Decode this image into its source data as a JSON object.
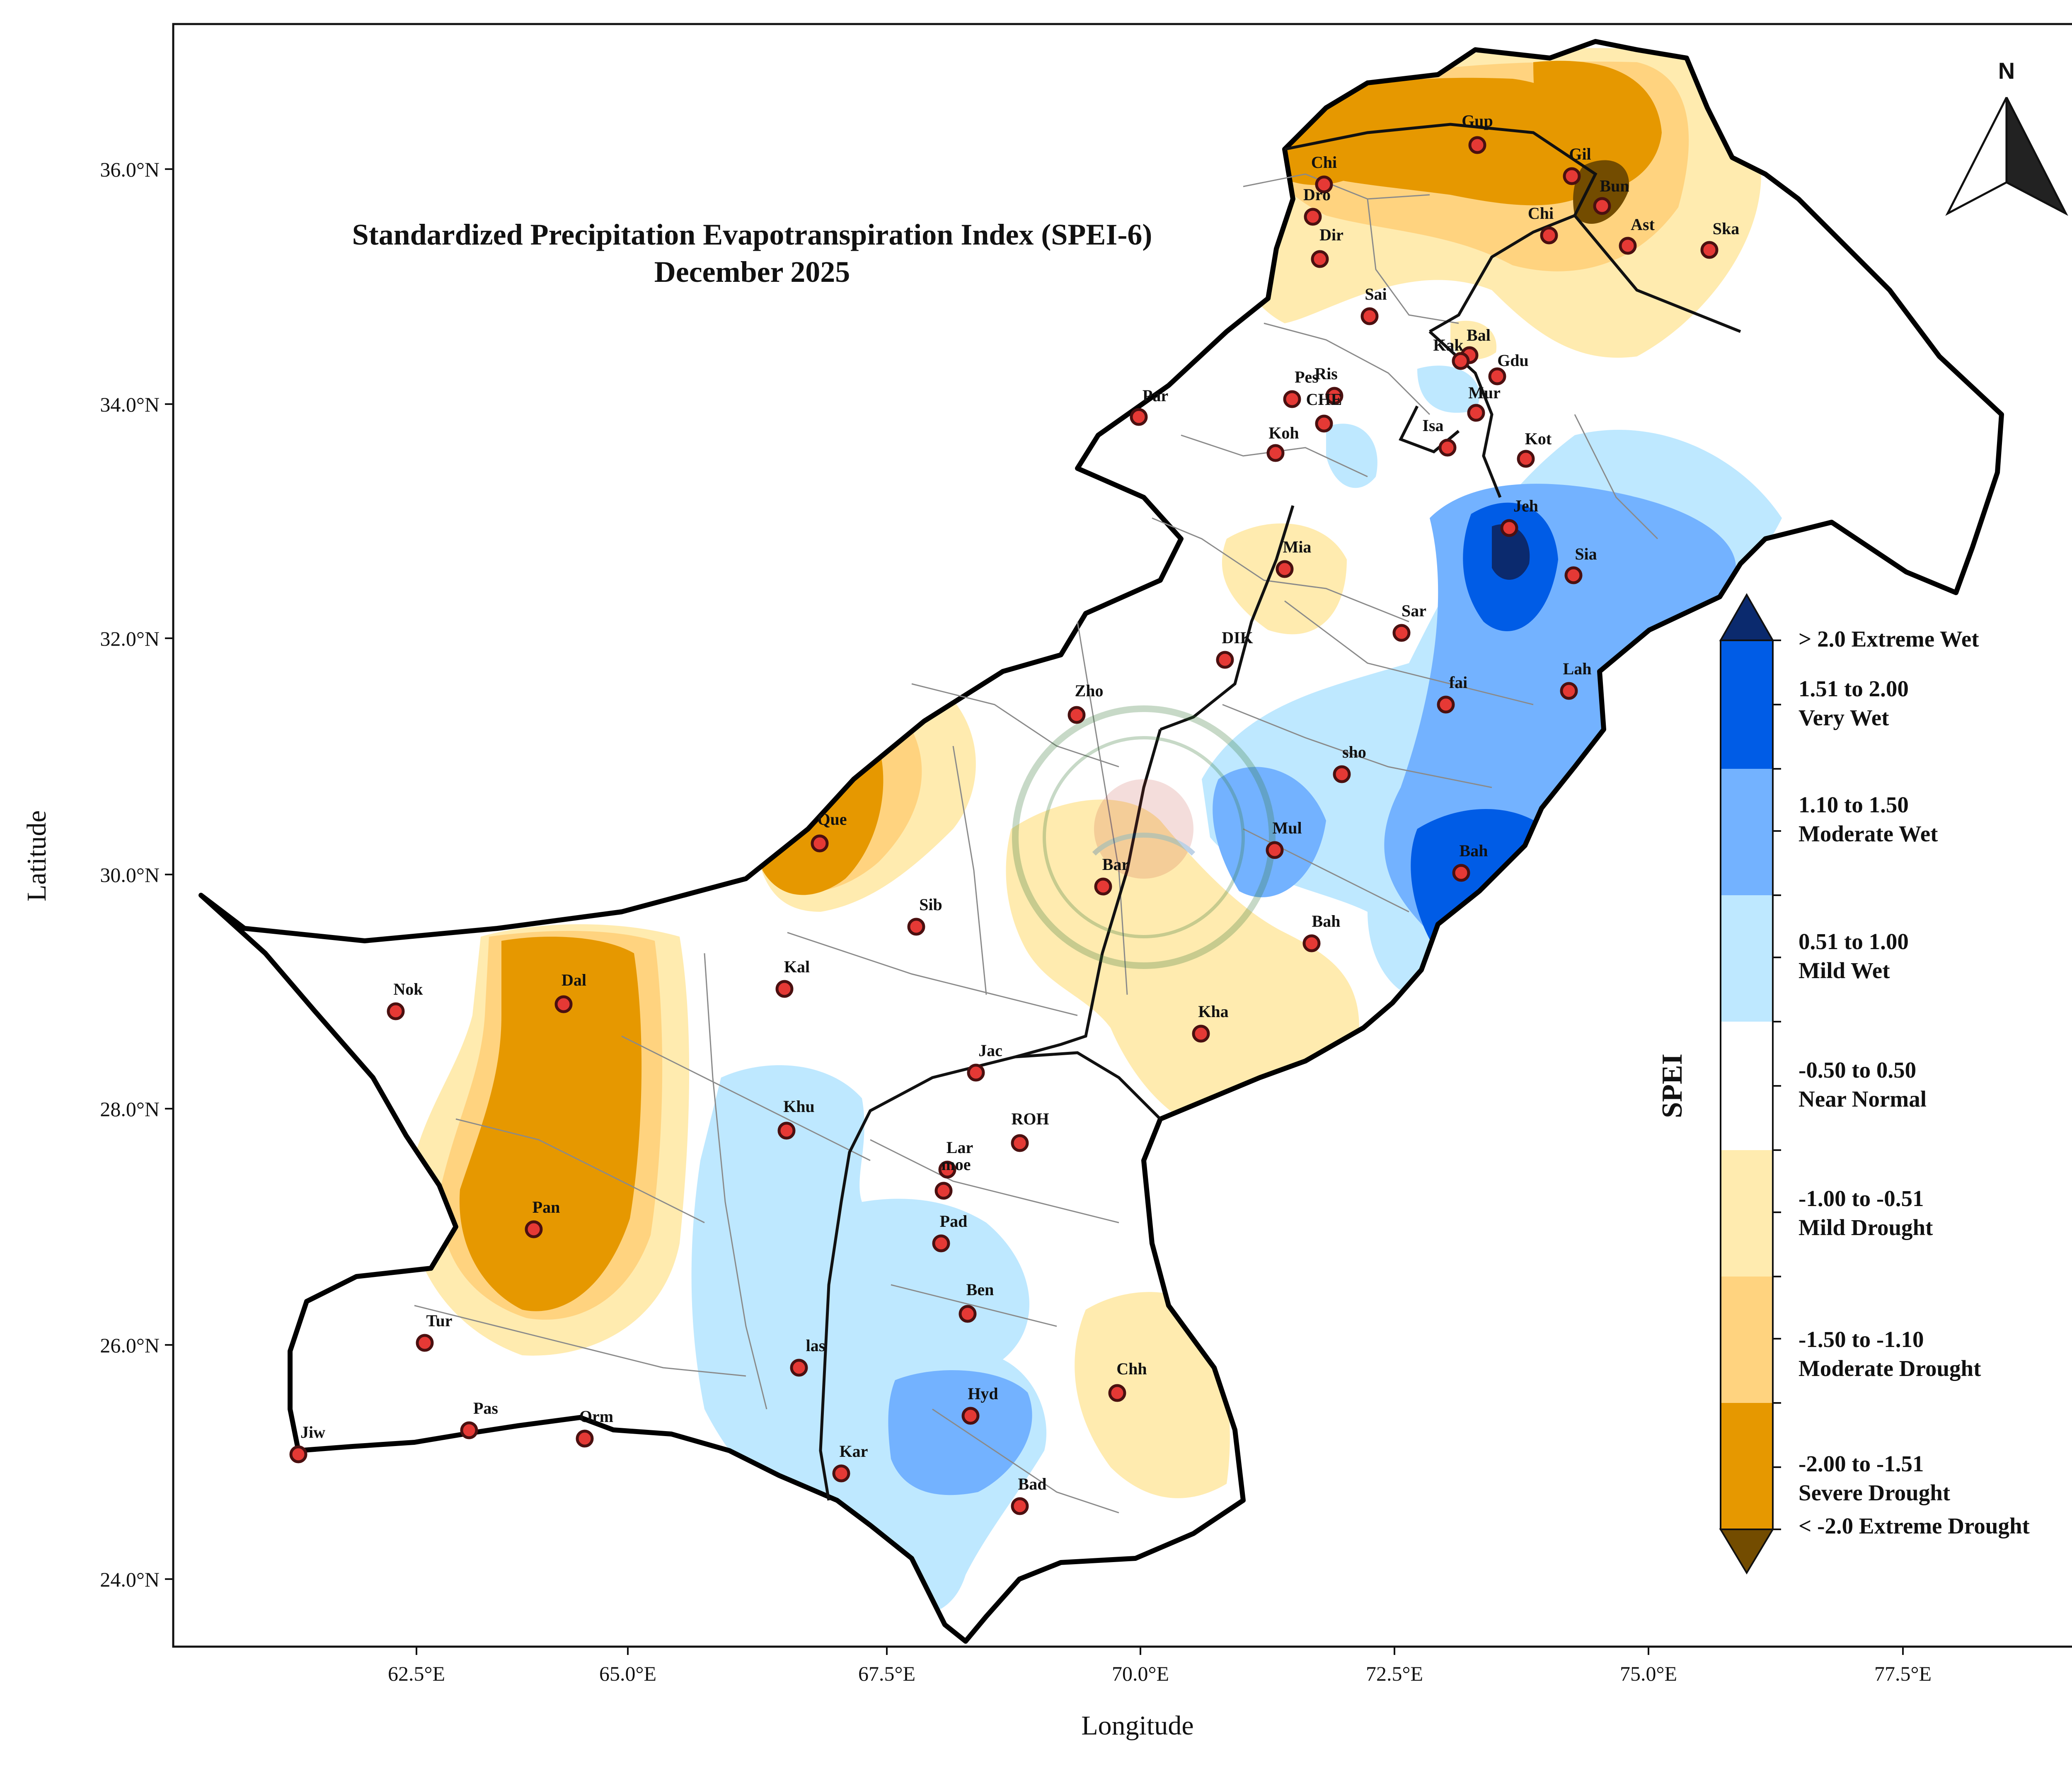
{
  "title": {
    "line1": "Standardized Precipitation Evapotranspiration Index (SPEI-6)",
    "line2": "December 2025"
  },
  "axes": {
    "xlabel": "Longitude",
    "ylabel": "Latitude",
    "x_ticks": [
      "62.5°E",
      "65.0°E",
      "67.5°E",
      "70.0°E",
      "72.5°E",
      "75.0°E",
      "77.5°E"
    ],
    "y_ticks": [
      "36.0°N",
      "34.0°N",
      "32.0°N",
      "30.0°N",
      "28.0°N",
      "26.0°N",
      "24.0°N"
    ]
  },
  "north_arrow": {
    "label": "N"
  },
  "legend": {
    "title": "SPEI",
    "classes": [
      {
        "line1": "> 2.0 Extreme Wet",
        "line2": "",
        "color": "#0b2a6e"
      },
      {
        "line1": "1.51 to 2.00",
        "line2": "Very Wet",
        "color": "#005ce6"
      },
      {
        "line1": "1.10 to 1.50",
        "line2": "Moderate Wet",
        "color": "#73b2ff"
      },
      {
        "line1": "0.51 to 1.00",
        "line2": "Mild Wet",
        "color": "#bee8ff"
      },
      {
        "line1": "-0.50 to 0.50",
        "line2": "Near Normal",
        "color": "#ffffff"
      },
      {
        "line1": "-1.00 to -0.51",
        "line2": "Mild Drought",
        "color": "#ffebaf"
      },
      {
        "line1": "-1.50 to -1.10",
        "line2": "Moderate Drought",
        "color": "#ffd37f"
      },
      {
        "line1": "-2.00 to -1.51",
        "line2": "Severe Drought",
        "color": "#e69800"
      },
      {
        "line1": "< -2.0 Extreme Drought",
        "line2": "",
        "color": "#734c00"
      }
    ]
  },
  "stations": [
    {
      "name": "Chi"
    },
    {
      "name": "Dro"
    },
    {
      "name": "Dir"
    },
    {
      "name": "Gup"
    },
    {
      "name": "Gil"
    },
    {
      "name": "Bun"
    },
    {
      "name": "Chi"
    },
    {
      "name": "Ast"
    },
    {
      "name": "Ska"
    },
    {
      "name": "Sai"
    },
    {
      "name": "Bal"
    },
    {
      "name": "Kak"
    },
    {
      "name": "Gdu"
    },
    {
      "name": "Pes"
    },
    {
      "name": "Ris"
    },
    {
      "name": "CHE"
    },
    {
      "name": "Mur"
    },
    {
      "name": "Par"
    },
    {
      "name": "Koh"
    },
    {
      "name": "Isa"
    },
    {
      "name": "Kot"
    },
    {
      "name": "Jeh"
    },
    {
      "name": "Mia"
    },
    {
      "name": "Sia"
    },
    {
      "name": "Sar"
    },
    {
      "name": "DIK"
    },
    {
      "name": "Zho"
    },
    {
      "name": "fai"
    },
    {
      "name": "Lah"
    },
    {
      "name": "sho"
    },
    {
      "name": "Que"
    },
    {
      "name": "Mul"
    },
    {
      "name": "Bah"
    },
    {
      "name": "Bar"
    },
    {
      "name": "Sib"
    },
    {
      "name": "Bah"
    },
    {
      "name": "Nok"
    },
    {
      "name": "Dal"
    },
    {
      "name": "Kal"
    },
    {
      "name": "Kha"
    },
    {
      "name": "Jac"
    },
    {
      "name": "Khu"
    },
    {
      "name": "ROH"
    },
    {
      "name": "Lar"
    },
    {
      "name": "moe"
    },
    {
      "name": "Pan"
    },
    {
      "name": "Pad"
    },
    {
      "name": "Ben"
    },
    {
      "name": "Tur"
    },
    {
      "name": "las"
    },
    {
      "name": "Chh"
    },
    {
      "name": "Hyd"
    },
    {
      "name": "Pas"
    },
    {
      "name": "Orm"
    },
    {
      "name": "Jiw"
    },
    {
      "name": "Kar"
    },
    {
      "name": "Bad"
    }
  ]
}
